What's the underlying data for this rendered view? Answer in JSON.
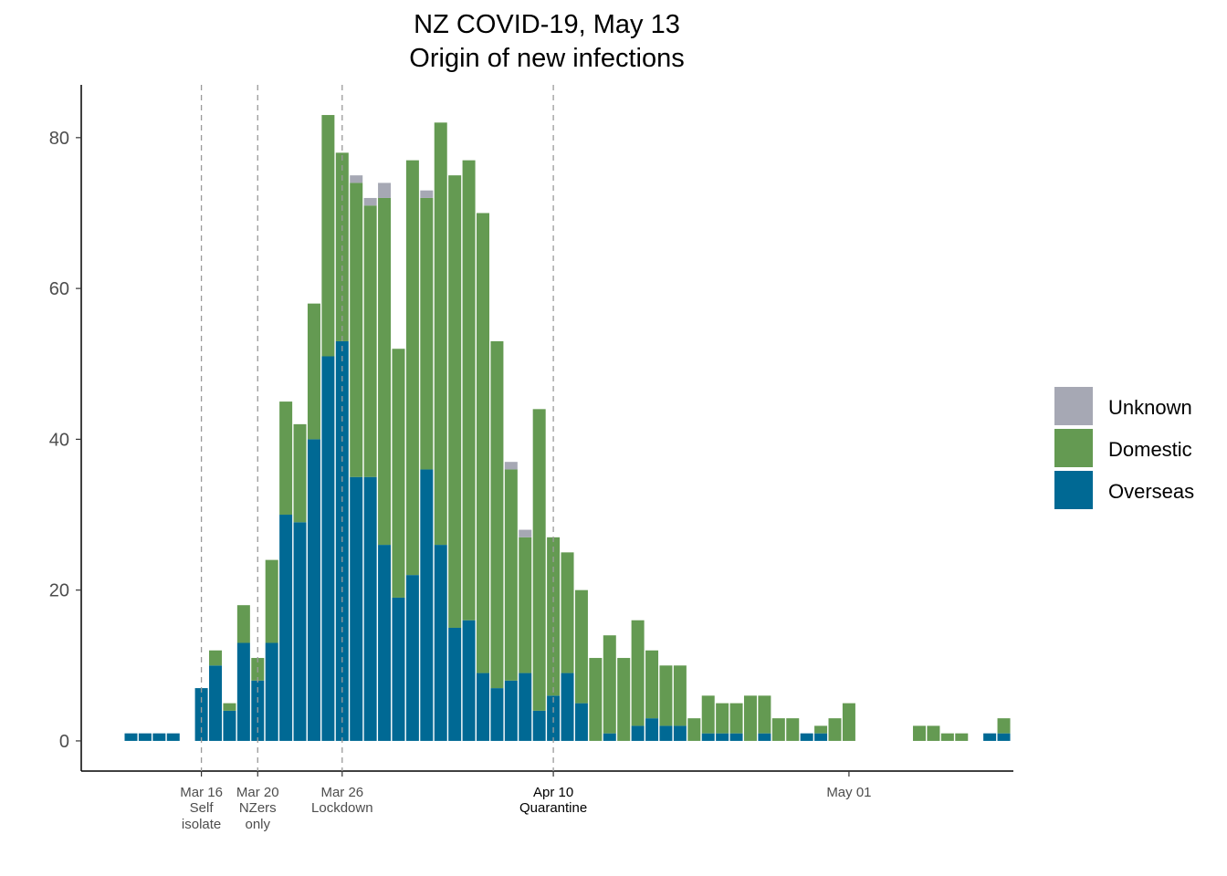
{
  "chart_data": {
    "type": "bar",
    "stacked": true,
    "title": "NZ COVID-19, May 13",
    "subtitle": "Origin of new infections",
    "xlabel": "",
    "ylabel": "",
    "ylim": [
      -4,
      87
    ],
    "yticks": [
      0,
      20,
      40,
      60,
      80
    ],
    "x_start": "Mar 11",
    "day_count": 63,
    "colors": {
      "Overseas": "#006994",
      "Domestic": "#649A52",
      "Unknown": "#A6A8B4"
    },
    "legend": {
      "position": "right",
      "entries": [
        "Unknown",
        "Domestic",
        "Overseas"
      ]
    },
    "series": [
      {
        "name": "Overseas",
        "values": [
          1,
          1,
          1,
          1,
          0,
          7,
          10,
          4,
          13,
          8,
          13,
          30,
          29,
          40,
          51,
          53,
          35,
          35,
          26,
          19,
          22,
          36,
          26,
          15,
          16,
          9,
          7,
          8,
          9,
          4,
          6,
          9,
          5,
          0,
          1,
          0,
          2,
          3,
          2,
          2,
          0,
          1,
          1,
          1,
          0,
          1,
          0,
          0,
          1,
          1,
          0,
          0,
          0,
          0,
          0,
          0,
          0,
          0,
          0,
          0,
          0,
          1,
          1
        ]
      },
      {
        "name": "Domestic",
        "values": [
          0,
          0,
          0,
          0,
          0,
          0,
          2,
          1,
          5,
          3,
          11,
          15,
          13,
          18,
          32,
          25,
          39,
          36,
          46,
          33,
          55,
          36,
          56,
          60,
          61,
          61,
          46,
          28,
          18,
          40,
          21,
          16,
          15,
          11,
          13,
          11,
          14,
          9,
          8,
          8,
          3,
          5,
          4,
          4,
          6,
          5,
          3,
          3,
          0,
          1,
          3,
          5,
          0,
          0,
          0,
          0,
          2,
          2,
          1,
          1,
          0,
          0,
          2
        ]
      },
      {
        "name": "Unknown",
        "values": [
          0,
          0,
          0,
          0,
          0,
          0,
          0,
          0,
          0,
          0,
          0,
          0,
          0,
          0,
          0,
          0,
          1,
          1,
          2,
          0,
          0,
          1,
          0,
          0,
          0,
          0,
          0,
          1,
          1,
          0,
          0,
          0,
          0,
          0,
          0,
          0,
          0,
          0,
          0,
          0,
          0,
          0,
          0,
          0,
          0,
          0,
          0,
          0,
          0,
          0,
          0,
          0,
          0,
          0,
          0,
          0,
          0,
          0,
          0,
          0,
          0,
          0,
          0
        ]
      }
    ],
    "events": [
      {
        "day": 5,
        "label": "Mar 16",
        "sub": [
          "Self",
          "isolate"
        ]
      },
      {
        "day": 9,
        "label": "Mar 20",
        "sub": [
          "NZers",
          "only"
        ]
      },
      {
        "day": 15,
        "label": "Mar 26",
        "sub": [
          "Lockdown"
        ]
      },
      {
        "day": 30,
        "label": "Apr 10",
        "sub": [
          "Quarantine"
        ],
        "emphasis": true
      }
    ],
    "xticks": [
      {
        "day": 51,
        "label": "May 01"
      }
    ]
  }
}
